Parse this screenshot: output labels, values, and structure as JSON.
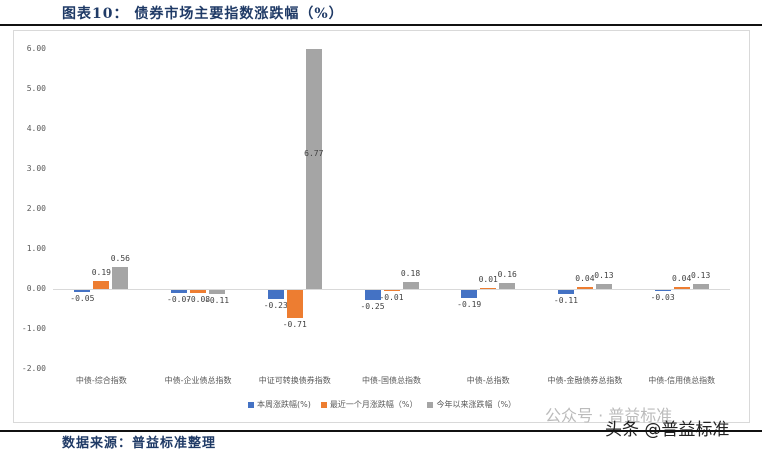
{
  "header": {
    "title": "图表10：  债券市场主要指数涨跌幅（%）"
  },
  "footer": {
    "source": "数据来源：普益标准整理"
  },
  "watermark": {
    "text1": "公众号 · 普益标准",
    "text2": "头条 @普益标准"
  },
  "colors": {
    "series1": "#4472c4",
    "series2": "#ed7d31",
    "series3": "#a5a5a5"
  },
  "chart_data": {
    "type": "bar",
    "title": "债券市场主要指数涨跌幅（%）",
    "xlabel": "",
    "ylabel": "",
    "ylim": [
      -2.0,
      6.0
    ],
    "yticks": [
      "6.00",
      "5.00",
      "4.00",
      "3.00",
      "2.00",
      "1.00",
      "0.00",
      "-1.00",
      "-2.00"
    ],
    "grid": false,
    "legend_position": "bottom",
    "categories": [
      "中债-综合指数",
      "中债-企业债总指数",
      "中证可转换债券指数",
      "中债-国债总指数",
      "中债-总指数",
      "中债-金融债券总指数",
      "中债-信用债总指数"
    ],
    "series": [
      {
        "name": "本周涨跌幅(%)",
        "values": [
          -0.05,
          -0.07,
          -0.23,
          -0.25,
          -0.19,
          -0.11,
          -0.03
        ]
      },
      {
        "name": "最近一个月涨跌幅（%）",
        "values": [
          0.19,
          -0.08,
          -0.71,
          -0.01,
          0.01,
          0.04,
          0.04
        ]
      },
      {
        "name": "今年以来涨跌幅（%）",
        "values": [
          0.56,
          -0.11,
          6.77,
          0.18,
          0.16,
          0.13,
          0.13
        ]
      }
    ],
    "labels": [
      [
        "-0.05",
        "0.19",
        "0.56"
      ],
      [
        "-0.07",
        "-0.08",
        "-0.11"
      ],
      [
        "-0.23",
        "-0.71",
        "6.77"
      ],
      [
        "-0.25",
        "-0.01",
        "0.18"
      ],
      [
        "-0.19",
        "0.01",
        "0.16"
      ],
      [
        "-0.11",
        "0.04",
        "0.13"
      ],
      [
        "-0.03",
        "0.04",
        "0.13"
      ]
    ]
  }
}
